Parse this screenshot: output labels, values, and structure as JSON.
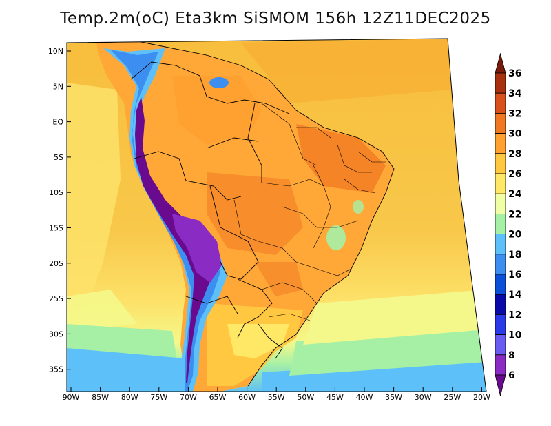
{
  "title": "Temp.2m(oC) Eta3km SiSMOM 156h 12Z11DEC2025",
  "map": {
    "variable": "2m temperature",
    "units": "oC",
    "lat_ticks": [
      "10N",
      "5N",
      "EQ",
      "5S",
      "10S",
      "15S",
      "20S",
      "25S",
      "30S",
      "35S"
    ],
    "lon_ticks": [
      "90W",
      "85W",
      "80W",
      "75W",
      "70W",
      "65W",
      "60W",
      "55W",
      "50W",
      "45W",
      "40W",
      "35W",
      "30W",
      "25W",
      "20W"
    ]
  },
  "colorbar": {
    "levels": [
      "6",
      "8",
      "10",
      "12",
      "14",
      "16",
      "18",
      "20",
      "22",
      "24",
      "26",
      "28",
      "30",
      "32",
      "34",
      "36"
    ],
    "colors": [
      "#6a0a8e",
      "#8a2cc4",
      "#6a5cf0",
      "#2a3ae8",
      "#0a0aa8",
      "#0a50d8",
      "#3c8ef0",
      "#5ec0f8",
      "#a6f0a6",
      "#f0ffa6",
      "#ffe866",
      "#ffc840",
      "#ffa030",
      "#f07820",
      "#d8501a",
      "#a8300e",
      "#7a1a08"
    ],
    "min_arrow_color": "#6a0a8e",
    "max_arrow_color": "#7a1a08"
  },
  "colors": {
    "ocean_warm": "#f8c84a",
    "ocean_mid": "#fff07a",
    "ocean_cool": "#a6f0a6",
    "ocean_cold": "#5ec0f8"
  }
}
